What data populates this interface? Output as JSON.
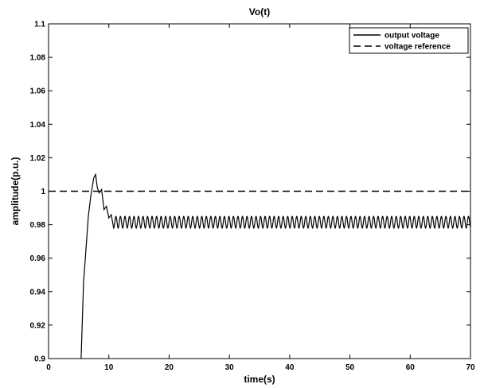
{
  "chart_data": {
    "type": "line",
    "title": "Vo(t)",
    "xlabel": "time(s)",
    "ylabel": "amplitude(p.u.)",
    "xlim": [
      0,
      70
    ],
    "ylim": [
      0.9,
      1.1
    ],
    "xticks": [
      0,
      10,
      20,
      30,
      40,
      50,
      60,
      70
    ],
    "yticks": [
      0.9,
      0.92,
      0.94,
      0.96,
      0.98,
      1,
      1.02,
      1.04,
      1.06,
      1.08,
      1.1
    ],
    "ytick_labels": [
      "0.9",
      "0.92",
      "0.94",
      "0.96",
      "0.98",
      "1",
      "1.02",
      "1.04",
      "1.06",
      "1.08",
      "1.1"
    ],
    "grid": false,
    "legend_position": "top-right",
    "series": [
      {
        "name": "output voltage",
        "line_style": "solid",
        "color": "#000000",
        "keypoints": [
          [
            5.4,
            0.9
          ],
          [
            5.8,
            0.945
          ],
          [
            6.2,
            0.965
          ],
          [
            6.6,
            0.985
          ],
          [
            7.0,
            0.997
          ],
          [
            7.5,
            1.008
          ],
          [
            7.8,
            1.01
          ],
          [
            8.1,
            1.002
          ],
          [
            8.4,
            0.999
          ],
          [
            8.8,
            1.001
          ],
          [
            9.2,
            0.989
          ],
          [
            9.6,
            0.991
          ],
          [
            10.0,
            0.984
          ],
          [
            10.4,
            0.986
          ],
          [
            10.8,
            0.978
          ]
        ],
        "steady_state": {
          "start": 10.8,
          "end": 70,
          "mean": 0.9815,
          "amplitude": 0.0035,
          "period": 0.75
        }
      },
      {
        "name": "voltage reference",
        "line_style": "dashed",
        "color": "#000000",
        "x": [
          0,
          70
        ],
        "y": [
          1,
          1
        ]
      }
    ]
  }
}
